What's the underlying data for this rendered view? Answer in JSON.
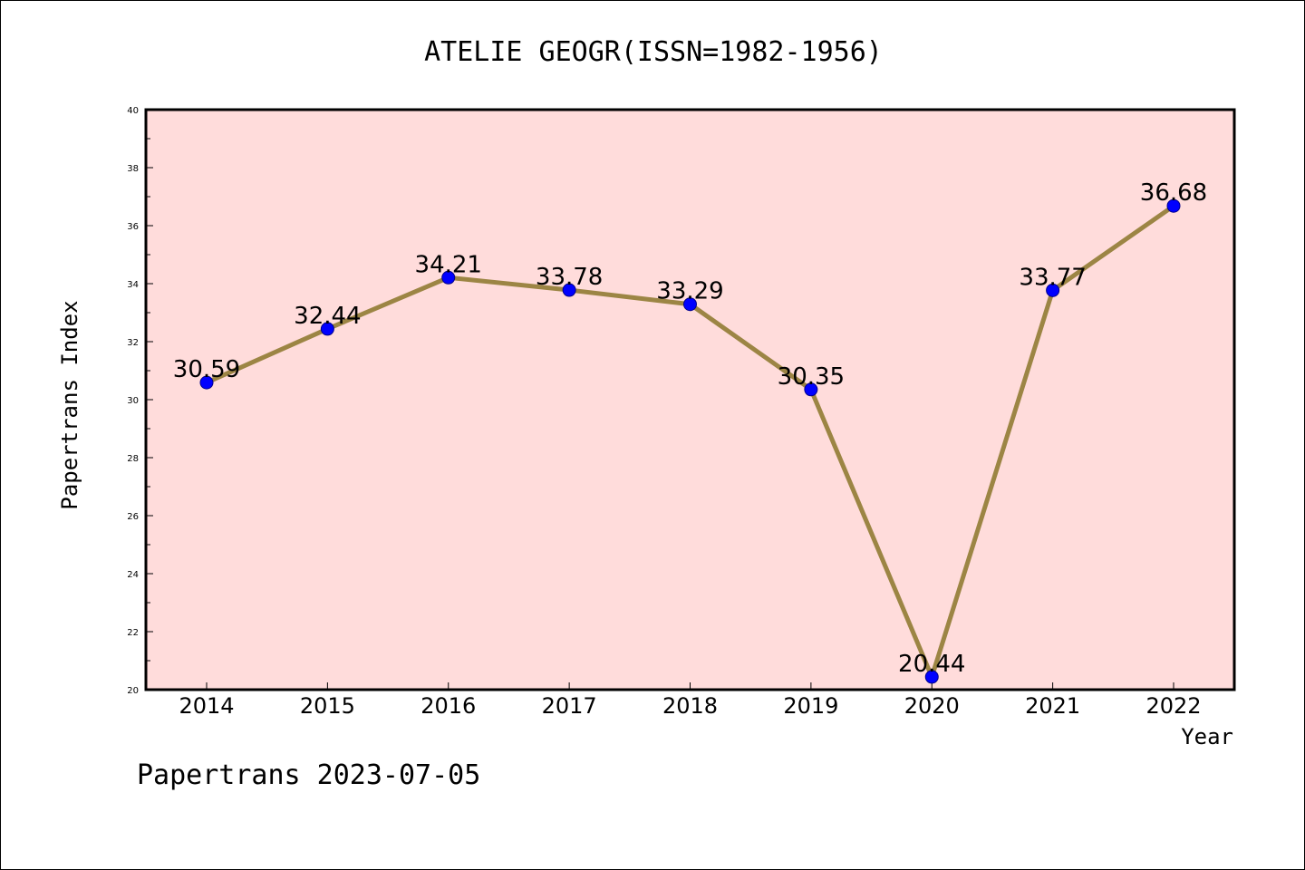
{
  "chart_data": {
    "type": "line",
    "title": "ATELIE GEOGR(ISSN=1982-1956)",
    "xlabel": "Year",
    "ylabel": "Papertrans Index",
    "categories": [
      "2014",
      "2015",
      "2016",
      "2017",
      "2018",
      "2019",
      "2020",
      "2021",
      "2022"
    ],
    "values": [
      30.59,
      32.44,
      34.21,
      33.78,
      33.29,
      30.35,
      20.44,
      33.77,
      36.68
    ],
    "data_labels": [
      "30.59",
      "32.44",
      "34.21",
      "33.78",
      "33.29",
      "30.35",
      "20.44",
      "33.77",
      "36.68"
    ],
    "ylim": [
      20,
      40
    ],
    "yticks": [
      "20",
      "22",
      "24",
      "26",
      "28",
      "30",
      "32",
      "34",
      "36",
      "38",
      "40"
    ],
    "grid": false,
    "legend": "none",
    "colors": {
      "plot_background": "#ffdcdb",
      "line": "#9c8544",
      "marker": "#0000ff",
      "marker_edge": "#00008b"
    }
  },
  "footer": "Papertrans 2023-07-05"
}
